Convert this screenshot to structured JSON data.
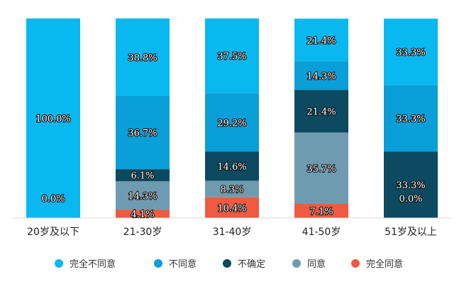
{
  "chart_data": {
    "type": "bar",
    "stacked": true,
    "percent": true,
    "categories": [
      "20岁及以下",
      "21-30岁",
      "31-40岁",
      "41-50岁",
      "51岁及以上"
    ],
    "series": [
      {
        "name": "完全同意",
        "color": "#ef5a40",
        "values": [
          0.0,
          4.1,
          10.4,
          7.1,
          0.0
        ],
        "labels": [
          "0.0%",
          "4.1%",
          "10.4%",
          "7.1%",
          "0.0%"
        ]
      },
      {
        "name": "同意",
        "color": "#6f9bb0",
        "values": [
          0.0,
          14.3,
          8.3,
          35.7,
          0.0
        ],
        "labels": [
          "",
          "14.3%",
          "8.3%",
          "35.7%",
          ""
        ]
      },
      {
        "name": "不确定",
        "color": "#0b4a60",
        "values": [
          0.0,
          6.1,
          14.6,
          21.4,
          33.3
        ],
        "labels": [
          "",
          "6.1%",
          "14.6%",
          "21.4%",
          "33.3%"
        ]
      },
      {
        "name": "不同意",
        "color": "#0a9fd8",
        "values": [
          0.0,
          36.7,
          29.2,
          14.3,
          33.3
        ],
        "labels": [
          "",
          "36.7%",
          "29.2%",
          "14.3%",
          "33.3%"
        ]
      },
      {
        "name": "完全不同意",
        "color": "#0ab8f0",
        "values": [
          100.0,
          38.8,
          37.5,
          21.4,
          33.3
        ],
        "labels": [
          "100.0%",
          "38.8%",
          "37.5%",
          "21.4%",
          "33.3%"
        ]
      }
    ],
    "legend_order": [
      "完全不同意",
      "不同意",
      "不确定",
      "同意",
      "完全同意"
    ],
    "legend_position": "bottom",
    "ylim": [
      0,
      100
    ],
    "grid": false,
    "title": "",
    "xlabel": "",
    "ylabel": ""
  }
}
